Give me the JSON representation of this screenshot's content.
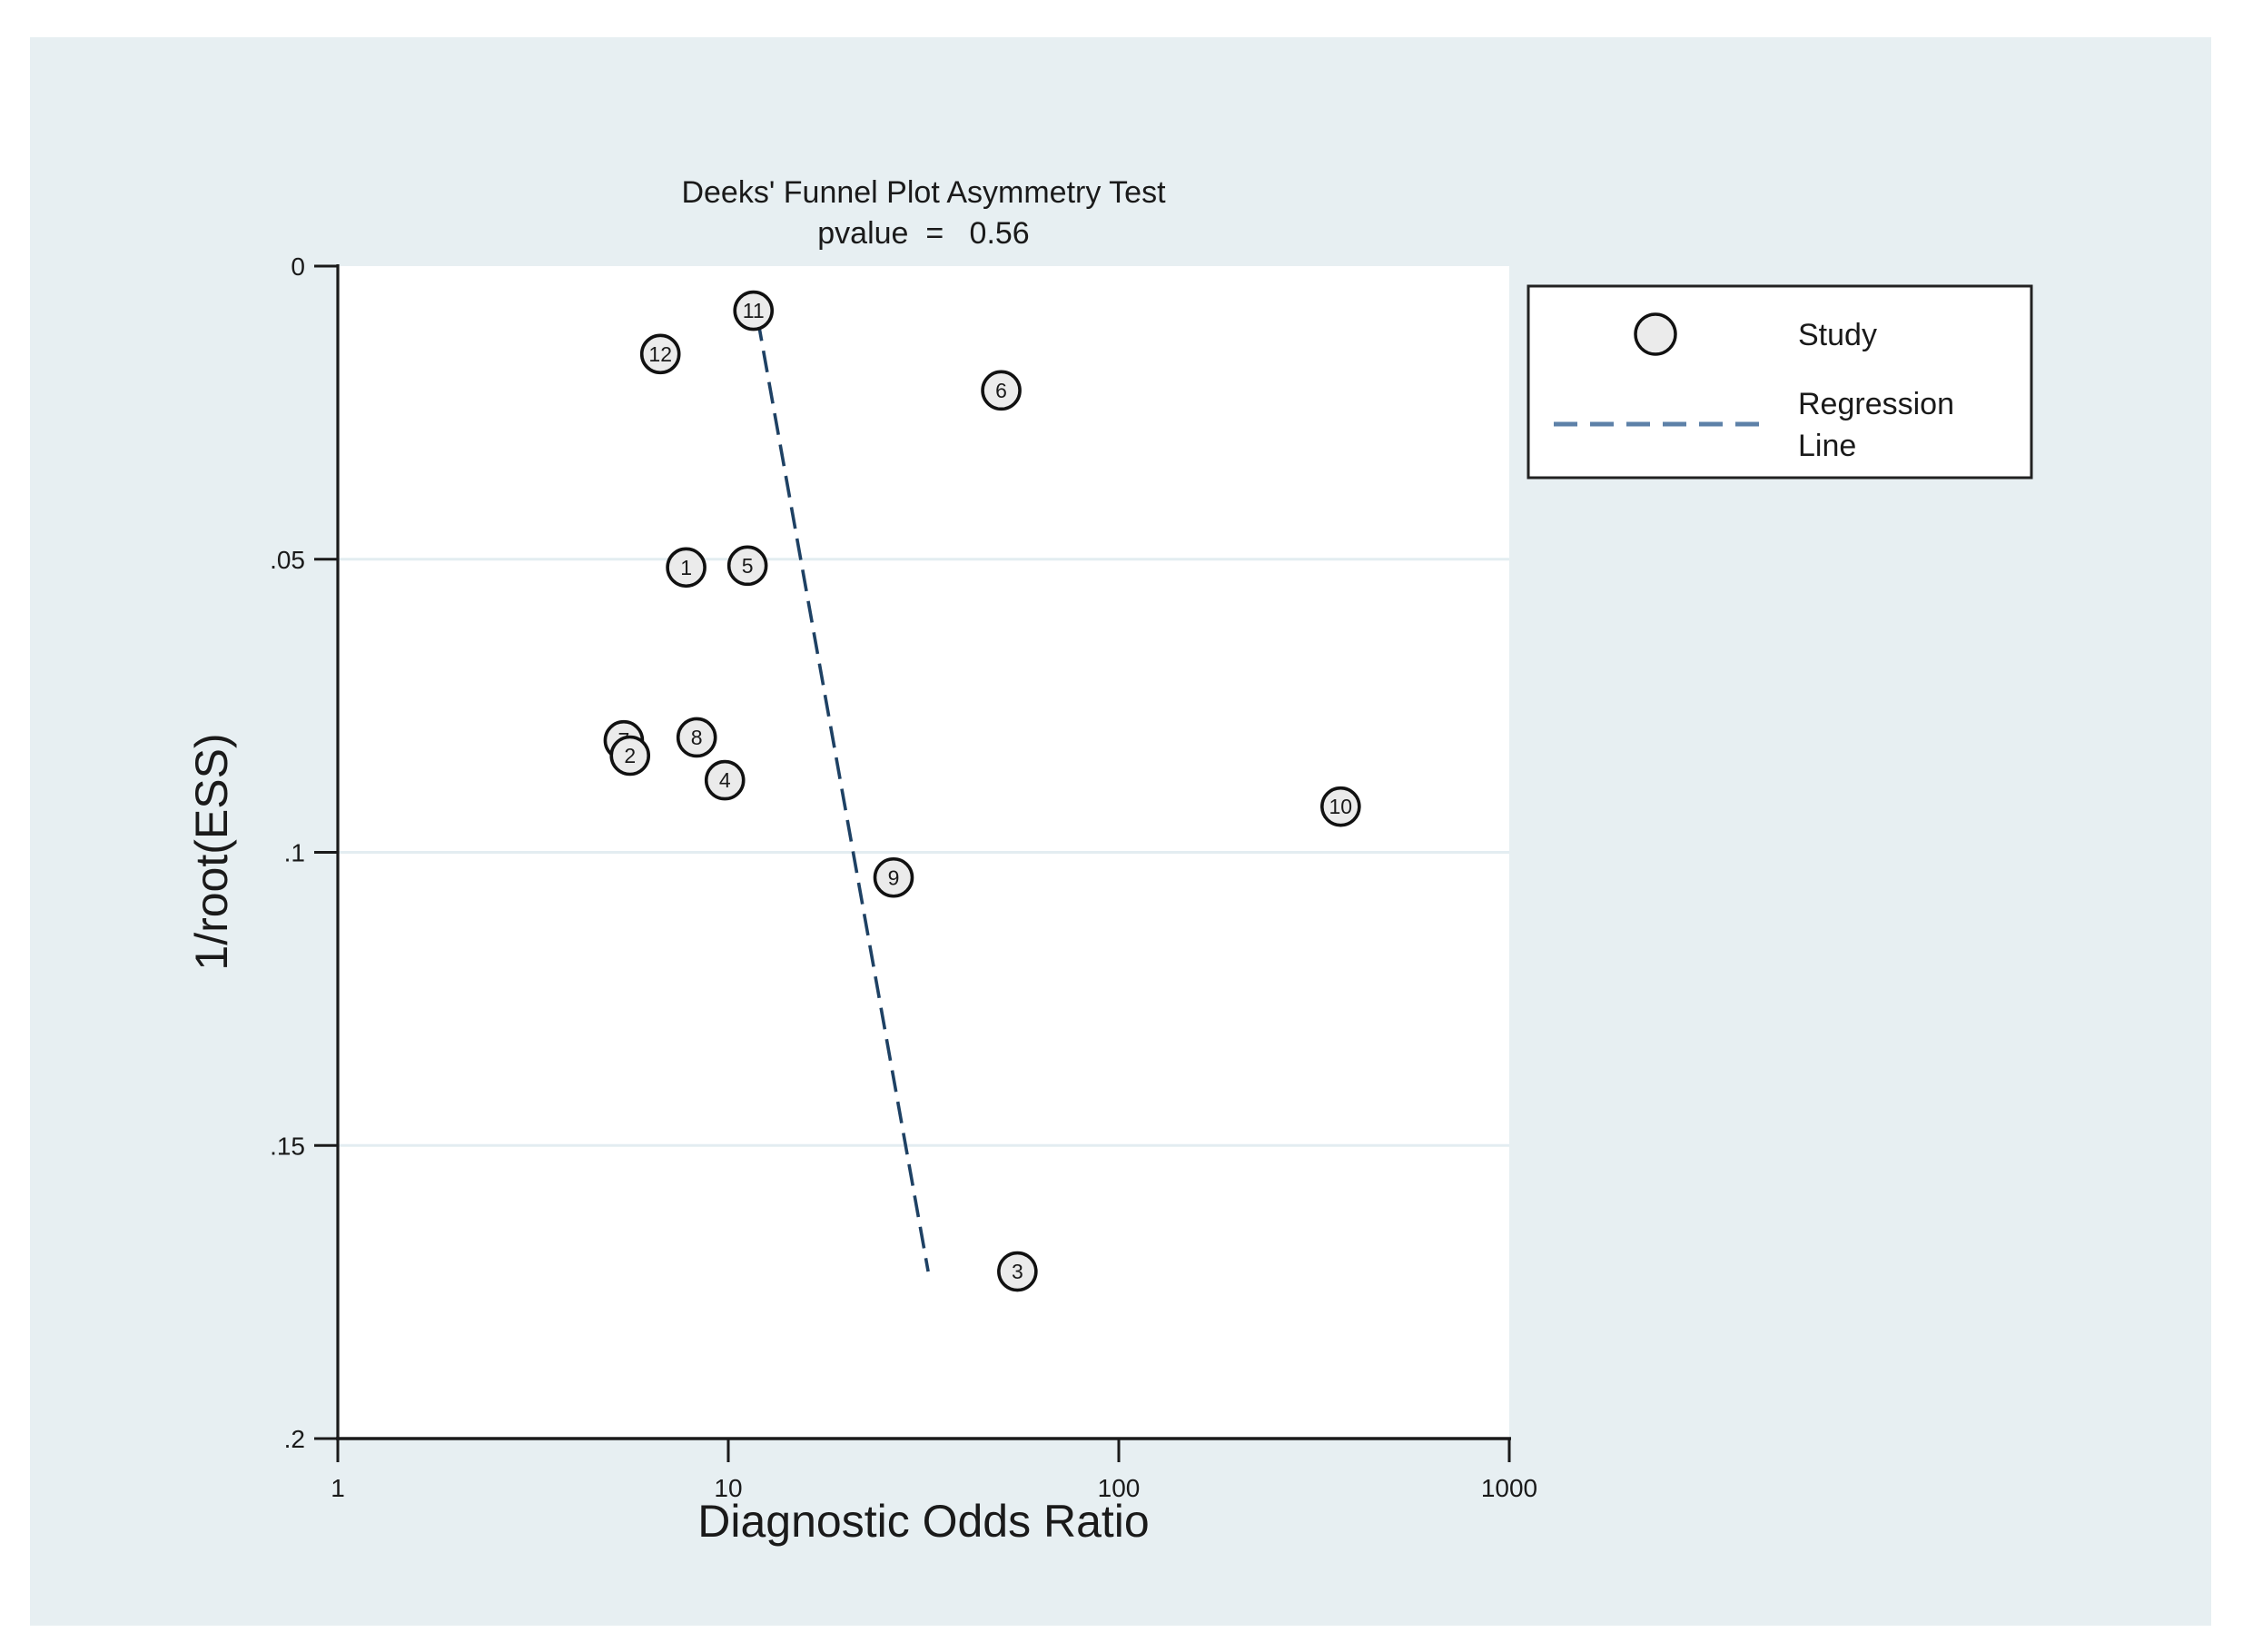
{
  "figure": {
    "title_line1": "Deeks' Funnel Plot Asymmetry Test",
    "title_line2": "pvalue  =   0.56",
    "x_axis_label": "Diagnostic Odds Ratio",
    "y_axis_label": "1/root(ESS)"
  },
  "legend": {
    "study_label": "Study",
    "regression_label_line1": "Regression",
    "regression_label_line2": "Line"
  },
  "colors": {
    "figure_background": "#e7eff2",
    "plot_background": "#ffffff",
    "axis": "#1a1a1a",
    "gridline": "#e3edf1",
    "regression_line": "#1e4164",
    "legend_dash": "#5d81a8",
    "marker_fill": "#ebebeb",
    "marker_stroke": "#111111",
    "marker_label": "#3a3a3a"
  },
  "chart_data": {
    "type": "scatter",
    "title": "Deeks' Funnel Plot Asymmetry Test",
    "subtitle": "pvalue  =   0.56",
    "xlabel": "Diagnostic Odds Ratio",
    "ylabel": "1/root(ESS)",
    "x_scale": "log10",
    "xlim": [
      1,
      1000
    ],
    "ylim": [
      0,
      0.2
    ],
    "y_inverted": true,
    "grid": "horizontal-only",
    "legend_position": "top-right",
    "x_ticks": [
      {
        "value": 1,
        "label": "1"
      },
      {
        "value": 10,
        "label": "10"
      },
      {
        "value": 100,
        "label": "100"
      },
      {
        "value": 1000,
        "label": "1000"
      }
    ],
    "y_ticks": [
      {
        "value": 0,
        "label": "0"
      },
      {
        "value": 0.05,
        "label": ".05"
      },
      {
        "value": 0.1,
        "label": ".1"
      },
      {
        "value": 0.15,
        "label": ".15"
      },
      {
        "value": 0.2,
        "label": ".2"
      }
    ],
    "gridlines_y": [
      0.05,
      0.1,
      0.15
    ],
    "studies": [
      {
        "label": "1",
        "dor": 7.8,
        "inv_root_ess": 0.0514
      },
      {
        "label": "3",
        "dor": 55,
        "inv_root_ess": 0.1715
      },
      {
        "label": "4",
        "dor": 9.8,
        "inv_root_ess": 0.0877
      },
      {
        "label": "5",
        "dor": 11.2,
        "inv_root_ess": 0.0511
      },
      {
        "label": "6",
        "dor": 50,
        "inv_root_ess": 0.0212
      },
      {
        "label": "7",
        "dor": 5.4,
        "inv_root_ess": 0.0809
      },
      {
        "label": "2",
        "dor": 5.6,
        "inv_root_ess": 0.0835
      },
      {
        "label": "8",
        "dor": 8.3,
        "inv_root_ess": 0.0804
      },
      {
        "label": "9",
        "dor": 26.5,
        "inv_root_ess": 0.1043
      },
      {
        "label": "10",
        "dor": 370,
        "inv_root_ess": 0.0922
      },
      {
        "label": "11",
        "dor": 11.6,
        "inv_root_ess": 0.0076
      },
      {
        "label": "12",
        "dor": 6.7,
        "inv_root_ess": 0.015
      }
    ],
    "regression_line": {
      "style": "dashed",
      "x1_dor": 11.9,
      "y1": 0.0091,
      "x2_dor": 32.5,
      "y2": 0.1715
    }
  }
}
